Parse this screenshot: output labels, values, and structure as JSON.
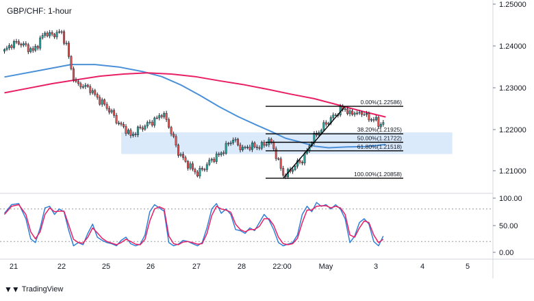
{
  "title": "GBP/CHF: 1-hour",
  "brand": "TradingView",
  "colors": {
    "up": "#26a69a",
    "down": "#ef5350",
    "candle": "#1e222d",
    "sma_fast": "#4a90d9",
    "sma_slow": "#e91e63",
    "zone": "#cfe3fa",
    "stoch_k": "#2f7fd6",
    "stoch_d": "#e91e63",
    "fib": "#000000",
    "grid": "#e8eaee",
    "axis_text": "#131722"
  },
  "chart_data": {
    "type": "candlestick",
    "title": "GBP/CHF: 1-hour",
    "x_tick_labels": [
      "21",
      "22",
      "25",
      "26",
      "27",
      "28",
      "22:00",
      "May",
      "3",
      "4",
      "5"
    ],
    "y_tick_labels": [
      "1.25000",
      "1.24000",
      "1.23000",
      "1.22000",
      "1.21000"
    ],
    "ylim": [
      1.2066,
      1.2504
    ],
    "price_path": [
      [
        0,
        1.2391
      ],
      [
        3,
        1.2408
      ],
      [
        6,
        1.2412
      ],
      [
        9,
        1.2402
      ],
      [
        12,
        1.2391
      ],
      [
        14,
        1.2408
      ],
      [
        17,
        1.2436
      ],
      [
        20,
        1.2428
      ],
      [
        22,
        1.2436
      ],
      [
        24,
        1.2434
      ],
      [
        26,
        1.2405
      ],
      [
        28,
        1.2348
      ],
      [
        30,
        1.2312
      ],
      [
        33,
        1.2308
      ],
      [
        36,
        1.23
      ],
      [
        39,
        1.2278
      ],
      [
        42,
        1.2262
      ],
      [
        45,
        1.2243
      ],
      [
        48,
        1.2217
      ],
      [
        51,
        1.2203
      ],
      [
        53,
        1.2187
      ],
      [
        56,
        1.2202
      ],
      [
        59,
        1.2212
      ],
      [
        62,
        1.2222
      ],
      [
        64,
        1.2229
      ],
      [
        66,
        1.2242
      ],
      [
        68,
        1.2226
      ],
      [
        70,
        1.2196
      ],
      [
        73,
        1.2148
      ],
      [
        76,
        1.2125
      ],
      [
        79,
        1.2107
      ],
      [
        81,
        1.2097
      ],
      [
        84,
        1.2112
      ],
      [
        87,
        1.2131
      ],
      [
        90,
        1.2141
      ],
      [
        92,
        1.2153
      ],
      [
        94,
        1.2169
      ],
      [
        96,
        1.218
      ],
      [
        98,
        1.2166
      ],
      [
        100,
        1.2156
      ],
      [
        103,
        1.2163
      ],
      [
        106,
        1.2161
      ],
      [
        109,
        1.2166
      ],
      [
        111,
        1.2178
      ],
      [
        113,
        1.2157
      ],
      [
        115,
        1.2125
      ],
      [
        117,
        1.2094
      ],
      [
        119,
        1.2098
      ],
      [
        121,
        1.211
      ],
      [
        123,
        1.2122
      ],
      [
        125,
        1.2129
      ],
      [
        127,
        1.2151
      ],
      [
        129,
        1.2178
      ],
      [
        132,
        1.2198
      ],
      [
        135,
        1.2218
      ],
      [
        138,
        1.2234
      ],
      [
        141,
        1.225
      ],
      [
        143,
        1.2254
      ],
      [
        145,
        1.2238
      ],
      [
        147,
        1.2246
      ],
      [
        149,
        1.2238
      ],
      [
        151,
        1.2245
      ],
      [
        153,
        1.2225
      ],
      [
        155,
        1.2232
      ],
      [
        157,
        1.2213
      ],
      [
        159,
        1.2222
      ]
    ],
    "sma_fast": [
      [
        0,
        1.2329
      ],
      [
        15,
        1.2345
      ],
      [
        28,
        1.2359
      ],
      [
        38,
        1.2359
      ],
      [
        48,
        1.2353
      ],
      [
        58,
        1.2342
      ],
      [
        66,
        1.233
      ],
      [
        74,
        1.231
      ],
      [
        82,
        1.2285
      ],
      [
        90,
        1.2258
      ],
      [
        98,
        1.2234
      ],
      [
        106,
        1.2213
      ],
      [
        112,
        1.2198
      ],
      [
        118,
        1.2182
      ],
      [
        124,
        1.2173
      ],
      [
        130,
        1.2163
      ],
      [
        136,
        1.2159
      ],
      [
        144,
        1.2161
      ],
      [
        152,
        1.2162
      ],
      [
        160,
        1.2167
      ]
    ],
    "sma_slow": [
      [
        0,
        1.2291
      ],
      [
        10,
        1.2302
      ],
      [
        20,
        1.2313
      ],
      [
        30,
        1.2322
      ],
      [
        40,
        1.2331
      ],
      [
        50,
        1.2336
      ],
      [
        60,
        1.2339
      ],
      [
        70,
        1.2336
      ],
      [
        80,
        1.233
      ],
      [
        90,
        1.232
      ],
      [
        100,
        1.2311
      ],
      [
        110,
        1.23
      ],
      [
        120,
        1.2288
      ],
      [
        130,
        1.2277
      ],
      [
        140,
        1.2262
      ],
      [
        150,
        1.2247
      ],
      [
        160,
        1.2233
      ]
    ],
    "support_zone": {
      "x_start": 49,
      "x_end": 188,
      "y_low": 1.2144,
      "y_high": 1.2196
    },
    "trend_line": {
      "from": [
        117,
        1.20858
      ],
      "to": [
        143,
        1.22586
      ]
    },
    "fibonacci_levels": [
      {
        "label": "0.00%(1.22586)",
        "value": 1.22586
      },
      {
        "label": "38.20%(1.21925)",
        "value": 1.21925
      },
      {
        "label": "50.00%(1.21722)",
        "value": 1.21722
      },
      {
        "label": "61.80%(1.21518)",
        "value": 1.21518
      },
      {
        "label": "100.00%(1.20858)",
        "value": 1.20858
      }
    ],
    "stochastic": {
      "tick_labels": [
        "100.00",
        "50.00",
        "0.00"
      ],
      "ylim": [
        0,
        100
      ],
      "levels": [
        80,
        20
      ],
      "k": [
        [
          0,
          72
        ],
        [
          3,
          88
        ],
        [
          6,
          90
        ],
        [
          9,
          62
        ],
        [
          11,
          25
        ],
        [
          13,
          18
        ],
        [
          15,
          45
        ],
        [
          17,
          82
        ],
        [
          19,
          85
        ],
        [
          21,
          70
        ],
        [
          23,
          80
        ],
        [
          25,
          75
        ],
        [
          27,
          40
        ],
        [
          29,
          12
        ],
        [
          31,
          18
        ],
        [
          33,
          14
        ],
        [
          35,
          35
        ],
        [
          37,
          52
        ],
        [
          39,
          28
        ],
        [
          41,
          22
        ],
        [
          43,
          18
        ],
        [
          45,
          16
        ],
        [
          47,
          12
        ],
        [
          49,
          22
        ],
        [
          51,
          28
        ],
        [
          53,
          16
        ],
        [
          55,
          12
        ],
        [
          57,
          15
        ],
        [
          59,
          32
        ],
        [
          61,
          75
        ],
        [
          63,
          88
        ],
        [
          65,
          82
        ],
        [
          67,
          76
        ],
        [
          69,
          18
        ],
        [
          71,
          12
        ],
        [
          73,
          15
        ],
        [
          75,
          22
        ],
        [
          77,
          20
        ],
        [
          79,
          16
        ],
        [
          81,
          12
        ],
        [
          83,
          18
        ],
        [
          85,
          45
        ],
        [
          87,
          80
        ],
        [
          89,
          90
        ],
        [
          91,
          72
        ],
        [
          93,
          80
        ],
        [
          95,
          70
        ],
        [
          97,
          42
        ],
        [
          99,
          40
        ],
        [
          101,
          35
        ],
        [
          103,
          45
        ],
        [
          105,
          40
        ],
        [
          107,
          55
        ],
        [
          109,
          70
        ],
        [
          111,
          60
        ],
        [
          113,
          42
        ],
        [
          115,
          18
        ],
        [
          117,
          12
        ],
        [
          119,
          15
        ],
        [
          121,
          18
        ],
        [
          123,
          32
        ],
        [
          125,
          70
        ],
        [
          127,
          85
        ],
        [
          129,
          75
        ],
        [
          131,
          92
        ],
        [
          133,
          85
        ],
        [
          135,
          88
        ],
        [
          137,
          80
        ],
        [
          139,
          88
        ],
        [
          141,
          80
        ],
        [
          143,
          62
        ],
        [
          145,
          18
        ],
        [
          147,
          30
        ],
        [
          149,
          55
        ],
        [
          151,
          62
        ],
        [
          153,
          52
        ],
        [
          155,
          20
        ],
        [
          157,
          12
        ],
        [
          159,
          30
        ]
      ],
      "d": [
        [
          0,
          70
        ],
        [
          3,
          85
        ],
        [
          6,
          88
        ],
        [
          9,
          70
        ],
        [
          11,
          38
        ],
        [
          13,
          25
        ],
        [
          15,
          38
        ],
        [
          17,
          70
        ],
        [
          19,
          82
        ],
        [
          21,
          75
        ],
        [
          23,
          76
        ],
        [
          25,
          76
        ],
        [
          27,
          50
        ],
        [
          29,
          24
        ],
        [
          31,
          18
        ],
        [
          33,
          17
        ],
        [
          35,
          28
        ],
        [
          37,
          45
        ],
        [
          39,
          36
        ],
        [
          41,
          26
        ],
        [
          43,
          20
        ],
        [
          45,
          17
        ],
        [
          47,
          14
        ],
        [
          49,
          18
        ],
        [
          51,
          24
        ],
        [
          53,
          20
        ],
        [
          55,
          15
        ],
        [
          57,
          14
        ],
        [
          59,
          24
        ],
        [
          61,
          58
        ],
        [
          63,
          80
        ],
        [
          65,
          84
        ],
        [
          67,
          80
        ],
        [
          69,
          30
        ],
        [
          71,
          16
        ],
        [
          73,
          14
        ],
        [
          75,
          19
        ],
        [
          77,
          20
        ],
        [
          79,
          18
        ],
        [
          81,
          15
        ],
        [
          83,
          16
        ],
        [
          85,
          35
        ],
        [
          87,
          68
        ],
        [
          89,
          85
        ],
        [
          91,
          80
        ],
        [
          93,
          78
        ],
        [
          95,
          74
        ],
        [
          97,
          52
        ],
        [
          99,
          42
        ],
        [
          101,
          38
        ],
        [
          103,
          42
        ],
        [
          105,
          42
        ],
        [
          107,
          48
        ],
        [
          109,
          62
        ],
        [
          111,
          62
        ],
        [
          113,
          50
        ],
        [
          115,
          28
        ],
        [
          117,
          16
        ],
        [
          119,
          14
        ],
        [
          121,
          16
        ],
        [
          123,
          26
        ],
        [
          125,
          55
        ],
        [
          127,
          78
        ],
        [
          129,
          78
        ],
        [
          131,
          85
        ],
        [
          133,
          86
        ],
        [
          135,
          86
        ],
        [
          137,
          82
        ],
        [
          139,
          85
        ],
        [
          141,
          82
        ],
        [
          143,
          70
        ],
        [
          145,
          32
        ],
        [
          147,
          28
        ],
        [
          149,
          45
        ],
        [
          151,
          58
        ],
        [
          153,
          55
        ],
        [
          155,
          32
        ],
        [
          157,
          18
        ],
        [
          159,
          24
        ]
      ]
    }
  }
}
